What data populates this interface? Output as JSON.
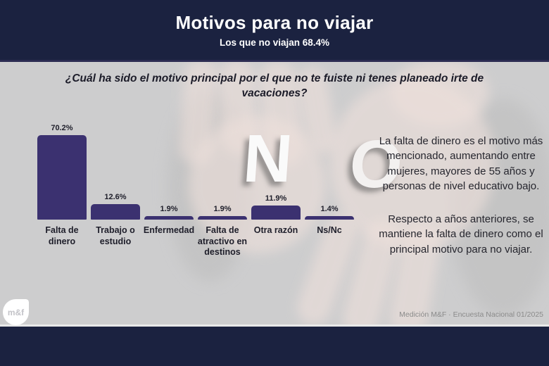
{
  "header": {
    "title": "Motivos para no viajar",
    "subtitle": "Los que no viajan 68.4%"
  },
  "question": "¿Cuál ha sido el motivo principal por el que no te fuiste ni tenes planeado irte de vacaciones?",
  "chart_data": {
    "type": "bar",
    "categories": [
      "Falta de dinero",
      "Trabajo o estudio",
      "Enfermedad",
      "Falta de atractivo en destinos",
      "Otra razón",
      "Ns/Nc"
    ],
    "values": [
      70.2,
      12.6,
      1.9,
      1.9,
      11.9,
      1.4
    ],
    "value_labels": [
      "70.2%",
      "12.6%",
      "1.9%",
      "1.9%",
      "11.9%",
      "1.4%"
    ],
    "title": "¿Cuál ha sido el motivo principal por el que no te fuiste ni tenes planeado irte de vacaciones?",
    "xlabel": "",
    "ylabel": "",
    "ylim": [
      0,
      75
    ],
    "grid": false,
    "legend": false,
    "bar_color": "#3b3170"
  },
  "background": {
    "letter_n": "N",
    "letter_o": "O"
  },
  "insight": {
    "paragraph1": "La falta de dinero es el motivo más mencionado, aumentando entre mujeres, mayores de 55 años y personas de nivel educativo bajo.",
    "paragraph2": "Respecto a años anteriores, se mantiene la falta de dinero como el principal motivo para no viajar."
  },
  "footer": {
    "logo": "m&f",
    "source": "Medición M&F · Encuesta Nacional 01/2025"
  },
  "colors": {
    "navy": "#1b2240",
    "bar_purple": "#3b3170",
    "background_gray": "#cdcdce",
    "text_dark": "#1e1e2a",
    "source_gray": "#8b8b8b"
  }
}
